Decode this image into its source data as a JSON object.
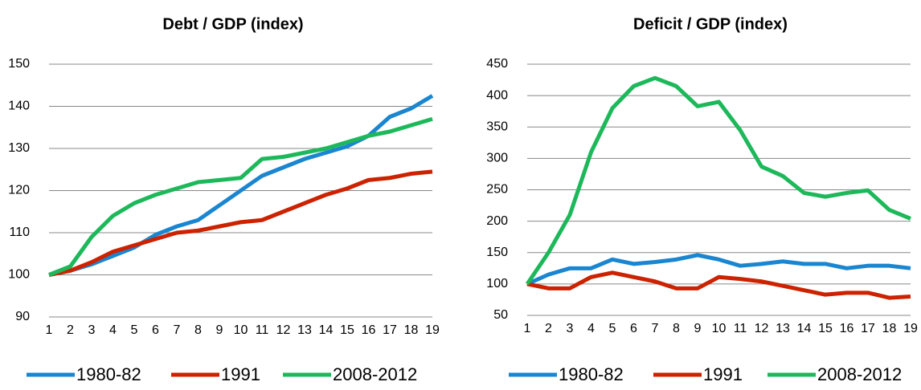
{
  "chart_data": [
    {
      "type": "line",
      "title": "Debt / GDP (index)",
      "x": [
        1,
        2,
        3,
        4,
        5,
        6,
        7,
        8,
        9,
        10,
        11,
        12,
        13,
        14,
        15,
        16,
        17,
        18,
        19
      ],
      "xlim": [
        1,
        19
      ],
      "xticks": [
        1,
        2,
        3,
        4,
        5,
        6,
        7,
        8,
        9,
        10,
        11,
        12,
        13,
        14,
        15,
        16,
        17,
        18,
        19
      ],
      "ylim": [
        90,
        150
      ],
      "yticks": [
        90,
        100,
        110,
        120,
        130,
        140,
        150
      ],
      "grid": true,
      "legend": "bottom",
      "series": [
        {
          "name": "1980-82",
          "color": "#1a86d0",
          "values": [
            100,
            101,
            102.5,
            104.5,
            106.5,
            109.5,
            111.5,
            113,
            116.5,
            120,
            123.5,
            125.5,
            127.5,
            129,
            130.5,
            133,
            137.5,
            139.5,
            142.5
          ]
        },
        {
          "name": "1991",
          "color": "#cc2200",
          "values": [
            100,
            101,
            103,
            105.5,
            107,
            108.5,
            110,
            110.5,
            111.5,
            112.5,
            113,
            115,
            117,
            119,
            120.5,
            122.5,
            123,
            124,
            124.5
          ]
        },
        {
          "name": "2008-2012",
          "color": "#1cb85a",
          "values": [
            100,
            102,
            109,
            114,
            117,
            119,
            120.5,
            122,
            122.5,
            123,
            127.5,
            128,
            129,
            130,
            131.5,
            133,
            134,
            135.5,
            137
          ]
        }
      ]
    },
    {
      "type": "line",
      "title": "Deficit / GDP (index)",
      "x": [
        1,
        2,
        3,
        4,
        5,
        6,
        7,
        8,
        9,
        10,
        11,
        12,
        13,
        14,
        15,
        16,
        17,
        18,
        19
      ],
      "xlim": [
        1,
        19
      ],
      "xticks": [
        1,
        2,
        3,
        4,
        5,
        6,
        7,
        8,
        9,
        10,
        11,
        12,
        13,
        14,
        15,
        16,
        17,
        18,
        19
      ],
      "ylim": [
        50,
        450
      ],
      "yticks": [
        50,
        100,
        150,
        200,
        250,
        300,
        350,
        400,
        450
      ],
      "grid": true,
      "legend": "bottom",
      "series": [
        {
          "name": "1980-82",
          "color": "#1a86d0",
          "values": [
            100,
            115,
            125,
            125,
            139,
            132,
            135,
            139,
            146,
            139,
            129,
            132,
            136,
            132,
            132,
            125,
            129,
            129,
            125
          ]
        },
        {
          "name": "1991",
          "color": "#cc2200",
          "values": [
            100,
            93,
            93,
            111,
            118,
            111,
            104,
            93,
            93,
            111,
            108,
            104,
            97,
            90,
            83,
            86,
            86,
            78,
            80
          ]
        },
        {
          "name": "2008-2012",
          "color": "#1cb85a",
          "values": [
            100,
            150,
            210,
            310,
            380,
            415,
            428,
            415,
            383,
            390,
            345,
            287,
            272,
            245,
            239,
            245,
            249,
            218,
            204
          ]
        }
      ]
    }
  ]
}
